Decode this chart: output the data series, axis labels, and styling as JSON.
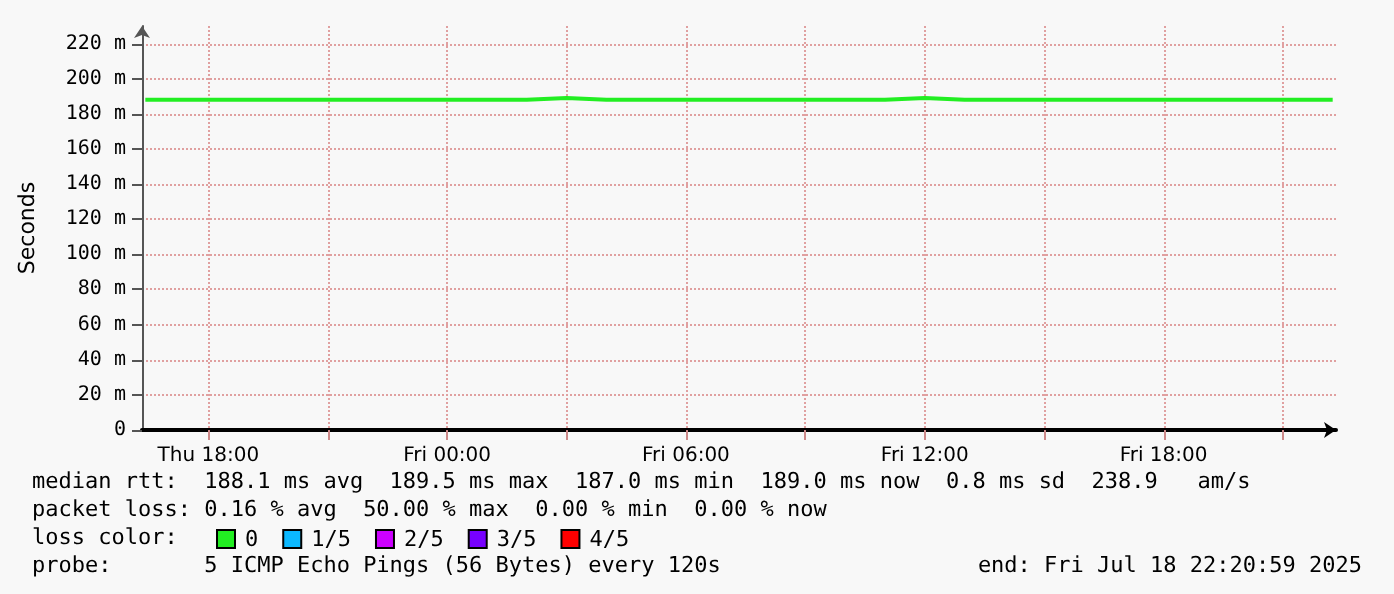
{
  "chart_data": {
    "type": "line",
    "ylabel": "Seconds",
    "x": [
      "2025-07-17T16:25",
      "2025-07-17T17:30",
      "2025-07-17T19:00",
      "2025-07-17T20:30",
      "2025-07-17T22:00",
      "2025-07-17T23:30",
      "2025-07-18T01:00",
      "2025-07-18T02:00",
      "2025-07-18T03:00",
      "2025-07-18T04:00",
      "2025-07-18T05:00",
      "2025-07-18T06:00",
      "2025-07-18T07:00",
      "2025-07-18T08:00",
      "2025-07-18T09:00",
      "2025-07-18T10:00",
      "2025-07-18T11:00",
      "2025-07-18T12:00",
      "2025-07-18T13:00",
      "2025-07-18T14:00",
      "2025-07-18T15:00",
      "2025-07-18T16:00",
      "2025-07-18T17:00",
      "2025-07-18T18:00",
      "2025-07-18T19:00",
      "2025-07-18T20:00",
      "2025-07-18T21:00",
      "2025-07-18T22:15"
    ],
    "series": [
      {
        "name": "0",
        "color": "#22ee22",
        "values": [
          188,
          188,
          188,
          188,
          188,
          188,
          188,
          188,
          189,
          188,
          188,
          188,
          188,
          188,
          188,
          188,
          188,
          189,
          188,
          188,
          188,
          188,
          188,
          188,
          188,
          188,
          188,
          188
        ]
      },
      {
        "name": "1/5",
        "color": "#0bb8ff",
        "values": [
          null,
          null,
          null,
          null,
          null,
          null,
          null,
          null,
          null,
          null,
          null,
          null,
          null,
          null,
          null,
          null,
          null,
          null,
          null,
          null,
          null,
          null,
          null,
          null,
          null,
          null,
          null,
          null
        ]
      },
      {
        "name": "2/5",
        "color": "#cc00ff",
        "values": [
          null,
          null,
          null,
          null,
          null,
          null,
          null,
          null,
          null,
          null,
          null,
          null,
          null,
          null,
          null,
          null,
          null,
          null,
          null,
          null,
          null,
          null,
          null,
          null,
          null,
          null,
          null,
          null
        ]
      },
      {
        "name": "3/5",
        "color": "#7700ff",
        "values": [
          null,
          null,
          null,
          null,
          null,
          null,
          null,
          null,
          null,
          null,
          null,
          null,
          null,
          null,
          null,
          null,
          null,
          null,
          null,
          null,
          null,
          null,
          null,
          null,
          null,
          null,
          null,
          null
        ]
      },
      {
        "name": "4/5",
        "color": "#ff0000",
        "values": [
          null,
          null,
          null,
          null,
          null,
          null,
          null,
          null,
          null,
          null,
          null,
          null,
          null,
          null,
          null,
          null,
          null,
          null,
          null,
          null,
          null,
          null,
          null,
          null,
          null,
          null,
          null,
          null
        ]
      }
    ],
    "legend_title": "loss color:",
    "legend": "bottom left",
    "grid": true,
    "marker": "none",
    "line_style": "solid",
    "xlim": [
      "2025-07-17T16:20",
      "2025-07-18T22:20"
    ],
    "xticks": [
      {
        "value": "2025-07-17T18:00",
        "label": "Thu 18:00"
      },
      {
        "value": "2025-07-17T21:00",
        "label": null
      },
      {
        "value": "2025-07-18T00:00",
        "label": "Fri 00:00"
      },
      {
        "value": "2025-07-18T03:00",
        "label": null
      },
      {
        "value": "2025-07-18T06:00",
        "label": "Fri 06:00"
      },
      {
        "value": "2025-07-18T09:00",
        "label": null
      },
      {
        "value": "2025-07-18T12:00",
        "label": "Fri 12:00"
      },
      {
        "value": "2025-07-18T15:00",
        "label": null
      },
      {
        "value": "2025-07-18T18:00",
        "label": "Fri 18:00"
      },
      {
        "value": "2025-07-18T21:00",
        "label": null
      }
    ],
    "ylim": [
      0,
      230
    ],
    "yticks": [
      {
        "value": 0,
        "label": "0"
      },
      {
        "value": 20,
        "label": "20 m"
      },
      {
        "value": 40,
        "label": "40 m"
      },
      {
        "value": 60,
        "label": "60 m"
      },
      {
        "value": 80,
        "label": "80 m"
      },
      {
        "value": 100,
        "label": "100 m"
      },
      {
        "value": 120,
        "label": "120 m"
      },
      {
        "value": 140,
        "label": "140 m"
      },
      {
        "value": 160,
        "label": "160 m"
      },
      {
        "value": 180,
        "label": "180 m"
      },
      {
        "value": 200,
        "label": "200 m"
      },
      {
        "value": 220,
        "label": "220 m"
      }
    ],
    "annotations": [
      "median rtt:  188.1 ms avg  189.5 ms max  187.0 ms min  189.0 ms now  0.8 ms sd  238.9   am/s",
      "packet loss: 0.16 % avg  50.00 % max  0.00 % min  0.00 % now",
      "probe:       5 ICMP Echo Pings (56 Bytes) every 120s",
      "end: Fri Jul 18 22:20:59 2025"
    ]
  }
}
